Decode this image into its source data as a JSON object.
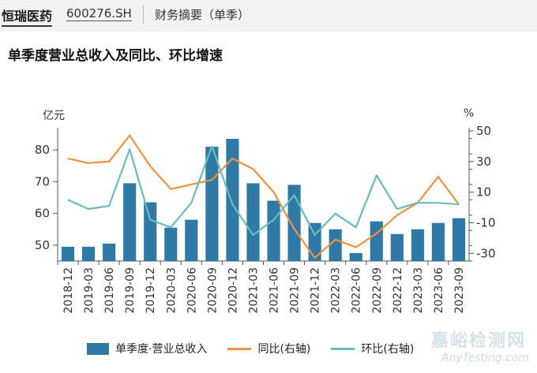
{
  "header": {
    "company": "恒瑞医药",
    "code": "600276.SH",
    "section": "财务摘要（单季）"
  },
  "colors": {
    "bar": "#2f79a7",
    "yoy": "#f0913a",
    "qoq": "#66bdbd"
  },
  "chart_data": {
    "type": "bar",
    "title": "单季度营业总收入及同比、环比增速",
    "left_unit": "亿元",
    "right_unit": "%",
    "categories": [
      "2018-12",
      "2019-03",
      "2019-06",
      "2019-09",
      "2019-12",
      "2020-03",
      "2020-06",
      "2020-09",
      "2020-12",
      "2021-03",
      "2021-06",
      "2021-09",
      "2021-12",
      "2022-03",
      "2022-06",
      "2022-09",
      "2022-12",
      "2023-03",
      "2023-06",
      "2023-09"
    ],
    "y_left": {
      "ylim": [
        45,
        86
      ],
      "ticks": [
        50,
        60,
        70,
        80
      ]
    },
    "y_right": {
      "ylim": [
        -35,
        50
      ],
      "ticks": [
        -30,
        -10,
        10,
        30,
        50
      ]
    },
    "series": [
      {
        "name": "单季度·营业总收入",
        "type": "bar",
        "axis": "left",
        "values": [
          49.5,
          49.5,
          50.5,
          69.5,
          63.5,
          55.5,
          58.0,
          81.0,
          83.5,
          69.5,
          64.0,
          69.0,
          57.0,
          55.0,
          47.5,
          57.5,
          53.5,
          55.0,
          57.0,
          58.5
        ]
      },
      {
        "name": "同比(右轴)",
        "type": "line",
        "axis": "right",
        "values": [
          32,
          29,
          30,
          47,
          27,
          12,
          15,
          18,
          32,
          25,
          10,
          -14,
          -33,
          -21,
          -26,
          -17,
          -5,
          3,
          20,
          2
        ]
      },
      {
        "name": "环比(右轴)",
        "type": "line",
        "axis": "right",
        "values": [
          5,
          -1,
          1,
          38,
          -8,
          -13,
          3,
          40,
          2,
          -18,
          -8,
          8,
          -18,
          -4,
          -13,
          21,
          -1,
          3,
          3,
          2
        ]
      }
    ]
  },
  "watermark": {
    "text": "嘉峪检测网",
    "sub": "AnyTesting.com"
  }
}
